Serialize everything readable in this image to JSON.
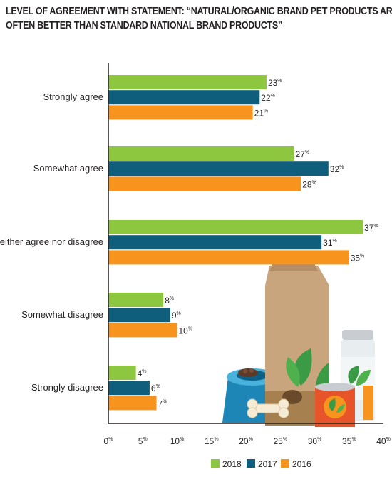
{
  "chart_data": {
    "type": "bar",
    "orientation": "horizontal",
    "title_line1": "LEVEL OF AGREEMENT WITH STATEMENT: “NATURAL/ORGANIC BRAND PET PRODUCTS ARE",
    "title_line2": "OFTEN BETTER THAN STANDARD NATIONAL BRAND PRODUCTS”",
    "categories": [
      "Strongly agree",
      "Somewhat agree",
      "Neither agree nor disagree",
      "Somewhat disagree",
      "Strongly disagree"
    ],
    "series": [
      {
        "name": "2018",
        "color": "#8dc63f",
        "values": [
          23,
          27,
          37,
          8,
          4
        ]
      },
      {
        "name": "2017",
        "color": "#0f5e7c",
        "values": [
          22,
          32,
          31,
          9,
          6
        ]
      },
      {
        "name": "2016",
        "color": "#f7941d",
        "values": [
          21,
          28,
          35,
          10,
          7
        ]
      }
    ],
    "value_suffix": "%",
    "x_ticks": [
      "0%",
      "5%",
      "10%",
      "15%",
      "20%",
      "25%",
      "30%",
      "35%",
      "40%"
    ],
    "xlim": [
      0,
      40
    ],
    "grid": false,
    "legend_position": "bottom-right"
  },
  "illustration": "pet food bag, bowl with kibble, bone, canned food and jar"
}
